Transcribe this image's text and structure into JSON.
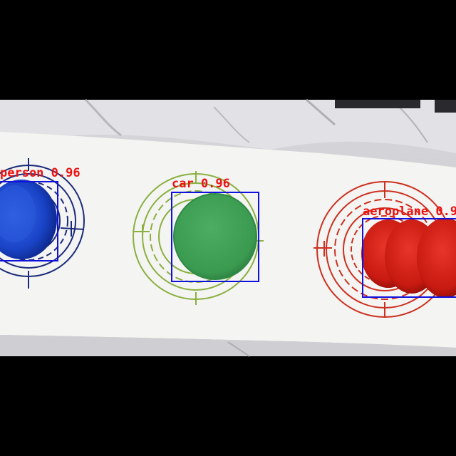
{
  "image": {
    "letterbox_color": "#000000",
    "background": "white plastic sheet with printed target rings",
    "objects": [
      {
        "name": "blue-peg",
        "color": "#1740c0",
        "ring_color": "#1a2a7a"
      },
      {
        "name": "green-peg",
        "color": "#3a9a50",
        "ring_color": "#8ab040"
      },
      {
        "name": "red-peg",
        "color": "#cc1a10",
        "ring_color": "#cc3020"
      }
    ]
  },
  "detections": [
    {
      "label": "person 0.96",
      "class": "person",
      "score": "0.96",
      "box_color": "#1010e0",
      "label_color": "#ee1111"
    },
    {
      "label": "car 0.96",
      "class": "car",
      "score": "0.96",
      "box_color": "#1010e0",
      "label_color": "#ee1111"
    },
    {
      "label": "aeroplane  0.9",
      "class": "aeroplane",
      "score": "0.9",
      "box_color": "#1010e0",
      "label_color": "#ee1111"
    }
  ]
}
